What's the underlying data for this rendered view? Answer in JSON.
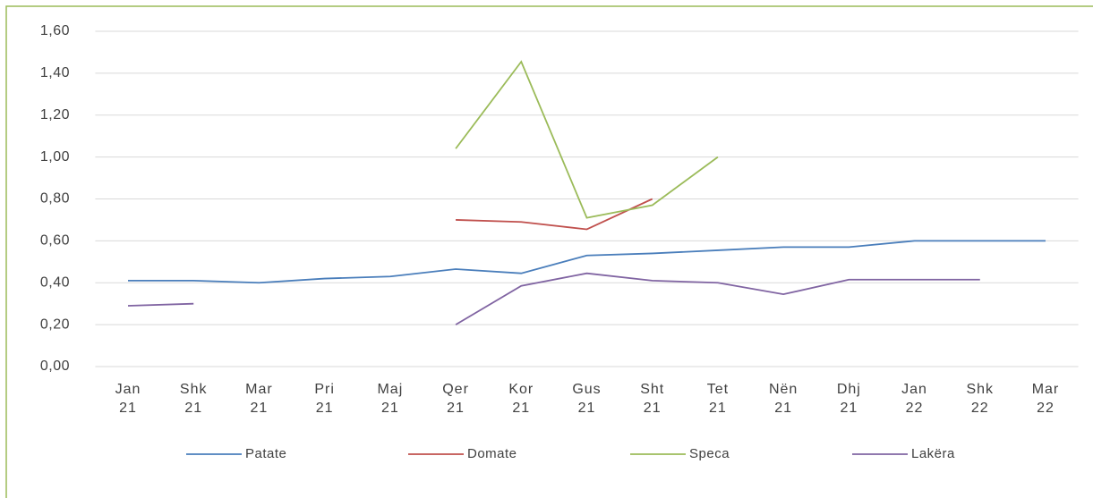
{
  "chart_data": {
    "type": "line",
    "categories": [
      "Jan 21",
      "Shk 21",
      "Mar 21",
      "Pri 21",
      "Maj 21",
      "Qer 21",
      "Kor 21",
      "Gus 21",
      "Sht 21",
      "Tet 21",
      "Nën 21",
      "Dhj 21",
      "Jan 22",
      "Shk 22",
      "Mar 22"
    ],
    "series": [
      {
        "name": "Patate",
        "color": "#4a7ebb",
        "values": [
          0.41,
          0.41,
          0.4,
          0.42,
          0.43,
          0.465,
          0.445,
          0.53,
          0.54,
          0.555,
          0.57,
          0.57,
          0.6,
          0.6,
          0.6
        ]
      },
      {
        "name": "Domate",
        "color": "#c0504d",
        "values": [
          null,
          null,
          null,
          null,
          null,
          0.7,
          0.69,
          0.655,
          0.8,
          null,
          null,
          null,
          null,
          null,
          null
        ]
      },
      {
        "name": "Speca",
        "color": "#9bbb59",
        "values": [
          null,
          null,
          null,
          null,
          null,
          1.04,
          1.455,
          0.71,
          0.77,
          1.0,
          null,
          null,
          null,
          null,
          null
        ]
      },
      {
        "name": "Lakëra",
        "color": "#8064a2",
        "values": [
          0.29,
          0.3,
          null,
          null,
          null,
          0.2,
          0.385,
          0.445,
          0.41,
          0.4,
          0.345,
          0.415,
          0.415,
          0.415,
          null
        ]
      }
    ],
    "ylim": [
      0,
      1.6
    ],
    "yticks": [
      {
        "value": 0,
        "label": "0,00"
      },
      {
        "value": 0.2,
        "label": "0,20"
      },
      {
        "value": 0.4,
        "label": "0,40"
      },
      {
        "value": 0.6,
        "label": "0,60"
      },
      {
        "value": 0.8,
        "label": "0,80"
      },
      {
        "value": 1.0,
        "label": "1,00"
      },
      {
        "value": 1.2,
        "label": "1,20"
      },
      {
        "value": 1.4,
        "label": "1,40"
      },
      {
        "value": 1.6,
        "label": "1,60"
      }
    ],
    "grid": true,
    "legend": "bottom"
  }
}
